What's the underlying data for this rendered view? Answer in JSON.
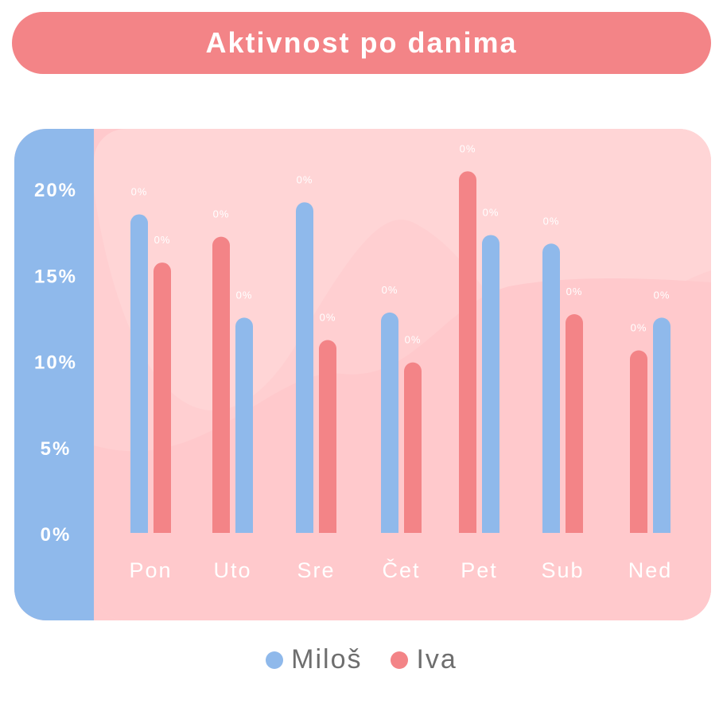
{
  "colors": {
    "milos": "#8fb9eb",
    "iva": "#f38487",
    "panel": "#ffc9cc",
    "title_bg": "#f38487"
  },
  "chart_data": {
    "type": "bar",
    "title": "Aktivnost po danima",
    "categories": [
      "Pon",
      "Uto",
      "Sre",
      "Čet",
      "Pet",
      "Sub",
      "Ned"
    ],
    "series": [
      {
        "name": "Miloš",
        "color": "#8fb9eb",
        "values": [
          18.5,
          12.5,
          19.2,
          12.8,
          17.3,
          16.8,
          12.5
        ]
      },
      {
        "name": "Iva",
        "color": "#f38487",
        "values": [
          15.7,
          17.2,
          11.2,
          9.9,
          21.0,
          12.7,
          10.6
        ]
      }
    ],
    "order": [
      [
        "milos",
        "iva"
      ],
      [
        "iva",
        "milos"
      ],
      [
        "milos",
        "iva"
      ],
      [
        "milos",
        "iva"
      ],
      [
        "iva",
        "milos"
      ],
      [
        "milos",
        "iva"
      ],
      [
        "iva",
        "milos"
      ]
    ],
    "data_label": "0%",
    "y_ticks": [
      "0%",
      "5%",
      "10%",
      "15%",
      "20%"
    ],
    "ylim": [
      0,
      21.5
    ]
  },
  "legend": {
    "items": [
      {
        "label": "Miloš",
        "key": "milos"
      },
      {
        "label": "Iva",
        "key": "iva"
      }
    ]
  }
}
